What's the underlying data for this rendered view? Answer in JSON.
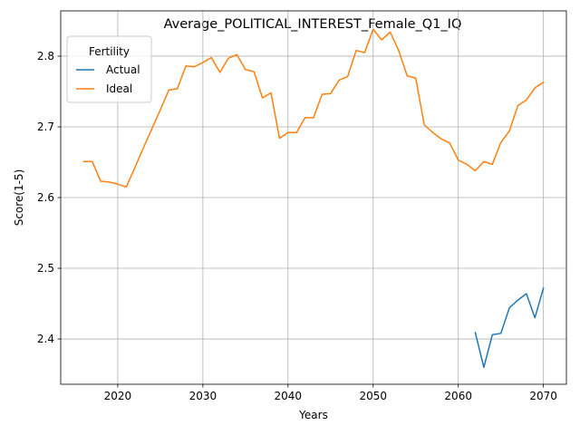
{
  "chart_data": {
    "type": "line",
    "title": "Average_POLITICAL_INTEREST_Female_Q1_IQ",
    "xlabel": "Years",
    "ylabel": "Score(1-5)",
    "xlim": [
      2013.3,
      2072.7
    ],
    "ylim": [
      2.336,
      2.864
    ],
    "xticks": [
      2020,
      2030,
      2040,
      2050,
      2060,
      2070
    ],
    "yticks": [
      2.4,
      2.5,
      2.6,
      2.7,
      2.8
    ],
    "grid": true,
    "legend": {
      "title": "Fertility",
      "placement": "top-left"
    },
    "series": [
      {
        "name": "Actual",
        "color": "#1f77b4",
        "x": [
          2062,
          2063,
          2064,
          2065,
          2066,
          2067,
          2068,
          2069,
          2070
        ],
        "values": [
          2.409,
          2.36,
          2.406,
          2.408,
          2.444,
          2.455,
          2.464,
          2.43,
          2.472
        ]
      },
      {
        "name": "Ideal",
        "color": "#ff7f0e",
        "x": [
          2016,
          2017,
          2018,
          2019,
          2020,
          2021,
          2022,
          2023,
          2024,
          2025,
          2026,
          2027,
          2028,
          2029,
          2030,
          2031,
          2032,
          2033,
          2034,
          2035,
          2036,
          2037,
          2038,
          2039,
          2040,
          2041,
          2042,
          2043,
          2044,
          2045,
          2046,
          2047,
          2048,
          2049,
          2050,
          2051,
          2052,
          2053,
          2054,
          2055,
          2056,
          2057,
          2058,
          2059,
          2060,
          2061,
          2062,
          2063,
          2064,
          2065,
          2066,
          2067,
          2068,
          2069,
          2070
        ],
        "values": [
          2.651,
          2.651,
          2.623,
          2.622,
          2.619,
          2.615,
          2.642,
          2.67,
          2.697,
          2.724,
          2.752,
          2.754,
          2.786,
          2.785,
          2.791,
          2.798,
          2.777,
          2.797,
          2.802,
          2.781,
          2.778,
          2.741,
          2.748,
          2.684,
          2.692,
          2.692,
          2.713,
          2.713,
          2.746,
          2.747,
          2.766,
          2.771,
          2.808,
          2.805,
          2.838,
          2.823,
          2.834,
          2.808,
          2.772,
          2.769,
          2.703,
          2.692,
          2.683,
          2.677,
          2.653,
          2.647,
          2.638,
          2.651,
          2.647,
          2.678,
          2.694,
          2.73,
          2.738,
          2.755,
          2.763
        ]
      }
    ]
  }
}
